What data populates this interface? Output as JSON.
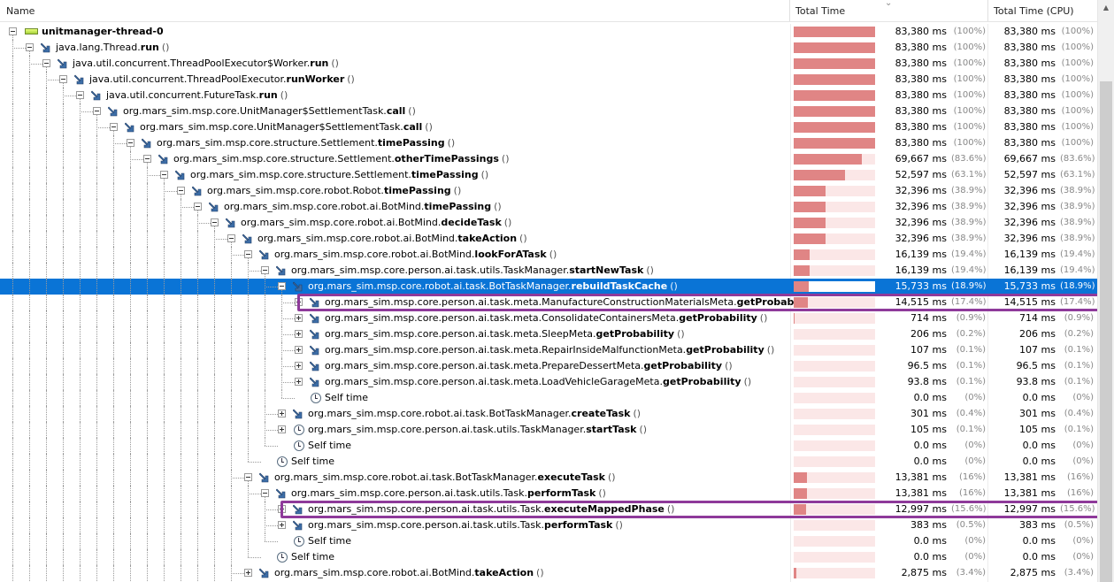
{
  "header": {
    "name": "Name",
    "total_time": "Total Time",
    "total_time_cpu": "Total Time (CPU)"
  },
  "rows": [
    {
      "level": 0,
      "toggle": "minus",
      "icon": "thread-icon",
      "label": "unitmanager-thread-0",
      "pre": "",
      "method": "",
      "ms": "83,380 ms",
      "pct": "(100%)",
      "cpu_ms": "83,380 ms",
      "cpu_pct": "(100%)",
      "bar": 1.0
    },
    {
      "level": 1,
      "toggle": "minus",
      "icon": "method-icon",
      "pre": "java.lang.Thread.",
      "method": "run",
      "ms": "83,380 ms",
      "pct": "(100%)",
      "cpu_ms": "83,380 ms",
      "cpu_pct": "(100%)",
      "bar": 1.0
    },
    {
      "level": 2,
      "toggle": "minus",
      "icon": "method-icon",
      "pre": "java.util.concurrent.ThreadPoolExecutor$Worker.",
      "method": "run",
      "ms": "83,380 ms",
      "pct": "(100%)",
      "cpu_ms": "83,380 ms",
      "cpu_pct": "(100%)",
      "bar": 1.0
    },
    {
      "level": 3,
      "toggle": "minus",
      "icon": "method-icon",
      "pre": "java.util.concurrent.ThreadPoolExecutor.",
      "method": "runWorker",
      "ms": "83,380 ms",
      "pct": "(100%)",
      "cpu_ms": "83,380 ms",
      "cpu_pct": "(100%)",
      "bar": 1.0
    },
    {
      "level": 4,
      "toggle": "minus",
      "icon": "method-icon",
      "pre": "java.util.concurrent.FutureTask.",
      "method": "run",
      "ms": "83,380 ms",
      "pct": "(100%)",
      "cpu_ms": "83,380 ms",
      "cpu_pct": "(100%)",
      "bar": 1.0
    },
    {
      "level": 5,
      "toggle": "minus",
      "icon": "method-icon",
      "pre": "org.mars_sim.msp.core.UnitManager$SettlementTask.",
      "method": "call",
      "ms": "83,380 ms",
      "pct": "(100%)",
      "cpu_ms": "83,380 ms",
      "cpu_pct": "(100%)",
      "bar": 1.0
    },
    {
      "level": 6,
      "toggle": "minus",
      "icon": "method-icon",
      "pre": "org.mars_sim.msp.core.UnitManager$SettlementTask.",
      "method": "call",
      "ms": "83,380 ms",
      "pct": "(100%)",
      "cpu_ms": "83,380 ms",
      "cpu_pct": "(100%)",
      "bar": 1.0
    },
    {
      "level": 7,
      "toggle": "minus",
      "icon": "method-icon",
      "pre": "org.mars_sim.msp.core.structure.Settlement.",
      "method": "timePassing",
      "ms": "83,380 ms",
      "pct": "(100%)",
      "cpu_ms": "83,380 ms",
      "cpu_pct": "(100%)",
      "bar": 1.0
    },
    {
      "level": 8,
      "toggle": "minus",
      "icon": "method-icon",
      "pre": "org.mars_sim.msp.core.structure.Settlement.",
      "method": "otherTimePassings",
      "ms": "69,667 ms",
      "pct": "(83.6%)",
      "cpu_ms": "69,667 ms",
      "cpu_pct": "(83.6%)",
      "bar": 0.836
    },
    {
      "level": 9,
      "toggle": "minus",
      "icon": "method-icon",
      "pre": "org.mars_sim.msp.core.structure.Settlement.",
      "method": "timePassing",
      "ms": "52,597 ms",
      "pct": "(63.1%)",
      "cpu_ms": "52,597 ms",
      "cpu_pct": "(63.1%)",
      "bar": 0.631
    },
    {
      "level": 10,
      "toggle": "minus",
      "icon": "method-icon",
      "pre": "org.mars_sim.msp.core.robot.Robot.",
      "method": "timePassing",
      "ms": "32,396 ms",
      "pct": "(38.9%)",
      "cpu_ms": "32,396 ms",
      "cpu_pct": "(38.9%)",
      "bar": 0.389
    },
    {
      "level": 11,
      "toggle": "minus",
      "icon": "method-icon",
      "pre": "org.mars_sim.msp.core.robot.ai.BotMind.",
      "method": "timePassing",
      "ms": "32,396 ms",
      "pct": "(38.9%)",
      "cpu_ms": "32,396 ms",
      "cpu_pct": "(38.9%)",
      "bar": 0.389
    },
    {
      "level": 12,
      "toggle": "minus",
      "icon": "method-icon",
      "pre": "org.mars_sim.msp.core.robot.ai.BotMind.",
      "method": "decideTask",
      "ms": "32,396 ms",
      "pct": "(38.9%)",
      "cpu_ms": "32,396 ms",
      "cpu_pct": "(38.9%)",
      "bar": 0.389
    },
    {
      "level": 13,
      "toggle": "minus",
      "icon": "method-icon",
      "pre": "org.mars_sim.msp.core.robot.ai.BotMind.",
      "method": "takeAction",
      "ms": "32,396 ms",
      "pct": "(38.9%)",
      "cpu_ms": "32,396 ms",
      "cpu_pct": "(38.9%)",
      "bar": 0.389
    },
    {
      "level": 14,
      "toggle": "minus",
      "icon": "method-icon",
      "pre": "org.mars_sim.msp.core.robot.ai.BotMind.",
      "method": "lookForATask",
      "ms": "16,139 ms",
      "pct": "(19.4%)",
      "cpu_ms": "16,139 ms",
      "cpu_pct": "(19.4%)",
      "bar": 0.194
    },
    {
      "level": 15,
      "toggle": "minus",
      "icon": "method-icon",
      "pre": "org.mars_sim.msp.core.person.ai.task.utils.TaskManager.",
      "method": "startNewTask",
      "ms": "16,139 ms",
      "pct": "(19.4%)",
      "cpu_ms": "16,139 ms",
      "cpu_pct": "(19.4%)",
      "bar": 0.194
    },
    {
      "level": 16,
      "toggle": "minus",
      "icon": "method-icon",
      "pre": "org.mars_sim.msp.core.robot.ai.task.BotTaskManager.",
      "method": "rebuildTaskCache",
      "ms": "15,733 ms",
      "pct": "(18.9%)",
      "cpu_ms": "15,733 ms",
      "cpu_pct": "(18.9%)",
      "bar": 0.189,
      "selected": true
    },
    {
      "level": 17,
      "toggle": "plus",
      "icon": "method-icon",
      "pre": "org.mars_sim.msp.core.person.ai.task.meta.ManufactureConstructionMaterialsMeta.",
      "method": "getProbability",
      "ms": "14,515 ms",
      "pct": "(17.4%)",
      "cpu_ms": "14,515 ms",
      "cpu_pct": "(17.4%)",
      "bar": 0.174,
      "highlight": true
    },
    {
      "level": 17,
      "toggle": "plus",
      "icon": "method-icon",
      "pre": "org.mars_sim.msp.core.person.ai.task.meta.ConsolidateContainersMeta.",
      "method": "getProbability",
      "ms": "714 ms",
      "pct": "(0.9%)",
      "cpu_ms": "714 ms",
      "cpu_pct": "(0.9%)",
      "bar": 0.009
    },
    {
      "level": 17,
      "toggle": "plus",
      "icon": "method-icon",
      "pre": "org.mars_sim.msp.core.person.ai.task.meta.SleepMeta.",
      "method": "getProbability",
      "ms": "206 ms",
      "pct": "(0.2%)",
      "cpu_ms": "206 ms",
      "cpu_pct": "(0.2%)",
      "bar": 0.002
    },
    {
      "level": 17,
      "toggle": "plus",
      "icon": "method-icon",
      "pre": "org.mars_sim.msp.core.person.ai.task.meta.RepairInsideMalfunctionMeta.",
      "method": "getProbability",
      "ms": "107 ms",
      "pct": "(0.1%)",
      "cpu_ms": "107 ms",
      "cpu_pct": "(0.1%)",
      "bar": 0.001
    },
    {
      "level": 17,
      "toggle": "plus",
      "icon": "method-icon",
      "pre": "org.mars_sim.msp.core.person.ai.task.meta.PrepareDessertMeta.",
      "method": "getProbability",
      "ms": "96.5 ms",
      "pct": "(0.1%)",
      "cpu_ms": "96.5 ms",
      "cpu_pct": "(0.1%)",
      "bar": 0.001
    },
    {
      "level": 17,
      "toggle": "plus",
      "icon": "method-icon",
      "pre": "org.mars_sim.msp.core.person.ai.task.meta.LoadVehicleGarageMeta.",
      "method": "getProbability",
      "ms": "93.8 ms",
      "pct": "(0.1%)",
      "cpu_ms": "93.8 ms",
      "cpu_pct": "(0.1%)",
      "bar": 0.001
    },
    {
      "level": 17,
      "toggle": "none",
      "icon": "clock-icon",
      "label": "Self time",
      "pre": "",
      "method": "",
      "ms": "0.0 ms",
      "pct": "(0%)",
      "cpu_ms": "0.0 ms",
      "cpu_pct": "(0%)",
      "bar": 0
    },
    {
      "level": 16,
      "toggle": "plus",
      "icon": "method-icon",
      "pre": "org.mars_sim.msp.core.robot.ai.task.BotTaskManager.",
      "method": "createTask",
      "ms": "301 ms",
      "pct": "(0.4%)",
      "cpu_ms": "301 ms",
      "cpu_pct": "(0.4%)",
      "bar": 0.004
    },
    {
      "level": 16,
      "toggle": "plus",
      "icon": "clock-icon",
      "pre": "org.mars_sim.msp.core.person.ai.task.utils.TaskManager.",
      "method": "startTask",
      "ms": "105 ms",
      "pct": "(0.1%)",
      "cpu_ms": "105 ms",
      "cpu_pct": "(0.1%)",
      "bar": 0.001
    },
    {
      "level": 16,
      "toggle": "none",
      "icon": "clock-icon",
      "label": "Self time",
      "pre": "",
      "method": "",
      "ms": "0.0 ms",
      "pct": "(0%)",
      "cpu_ms": "0.0 ms",
      "cpu_pct": "(0%)",
      "bar": 0
    },
    {
      "level": 15,
      "toggle": "none",
      "icon": "clock-icon",
      "label": "Self time",
      "pre": "",
      "method": "",
      "ms": "0.0 ms",
      "pct": "(0%)",
      "cpu_ms": "0.0 ms",
      "cpu_pct": "(0%)",
      "bar": 0
    },
    {
      "level": 14,
      "toggle": "minus",
      "icon": "method-icon",
      "pre": "org.mars_sim.msp.core.robot.ai.task.BotTaskManager.",
      "method": "executeTask",
      "ms": "13,381 ms",
      "pct": "(16%)",
      "cpu_ms": "13,381 ms",
      "cpu_pct": "(16%)",
      "bar": 0.16
    },
    {
      "level": 15,
      "toggle": "minus",
      "icon": "method-icon",
      "pre": "org.mars_sim.msp.core.person.ai.task.utils.Task.",
      "method": "performTask",
      "ms": "13,381 ms",
      "pct": "(16%)",
      "cpu_ms": "13,381 ms",
      "cpu_pct": "(16%)",
      "bar": 0.16
    },
    {
      "level": 16,
      "toggle": "plus",
      "icon": "method-icon",
      "pre": "org.mars_sim.msp.core.person.ai.task.utils.Task.",
      "method": "executeMappedPhase",
      "ms": "12,997 ms",
      "pct": "(15.6%)",
      "cpu_ms": "12,997 ms",
      "cpu_pct": "(15.6%)",
      "bar": 0.156,
      "highlight": true
    },
    {
      "level": 16,
      "toggle": "plus",
      "icon": "method-icon",
      "pre": "org.mars_sim.msp.core.person.ai.task.utils.Task.",
      "method": "performTask",
      "ms": "383 ms",
      "pct": "(0.5%)",
      "cpu_ms": "383 ms",
      "cpu_pct": "(0.5%)",
      "bar": 0.005
    },
    {
      "level": 16,
      "toggle": "none",
      "icon": "clock-icon",
      "label": "Self time",
      "pre": "",
      "method": "",
      "ms": "0.0 ms",
      "pct": "(0%)",
      "cpu_ms": "0.0 ms",
      "cpu_pct": "(0%)",
      "bar": 0
    },
    {
      "level": 15,
      "toggle": "none",
      "icon": "clock-icon",
      "label": "Self time",
      "pre": "",
      "method": "",
      "ms": "0.0 ms",
      "pct": "(0%)",
      "cpu_ms": "0.0 ms",
      "cpu_pct": "(0%)",
      "bar": 0
    },
    {
      "level": 14,
      "toggle": "plus",
      "icon": "method-icon",
      "pre": "org.mars_sim.msp.core.robot.ai.BotMind.",
      "method": "takeAction",
      "ms": "2,875 ms",
      "pct": "(3.4%)",
      "cpu_ms": "2,875 ms",
      "cpu_pct": "(3.4%)",
      "bar": 0.034
    }
  ],
  "paren": "()",
  "colors": {
    "selection": "#0a74d6",
    "bar_fill": "#e08585",
    "bar_track": "#fbe7e7",
    "highlight_border": "#8e3a9a"
  }
}
